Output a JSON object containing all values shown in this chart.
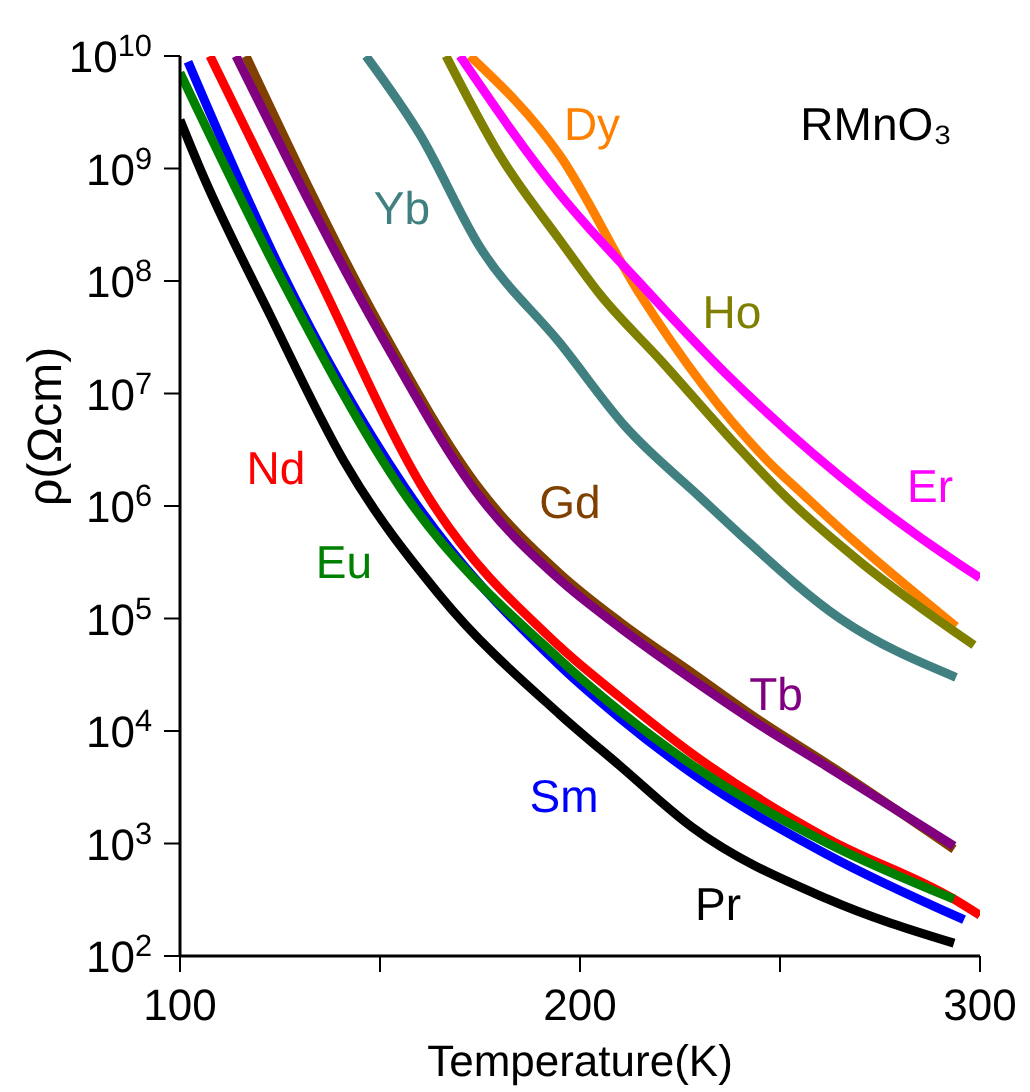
{
  "chart_data": {
    "type": "line",
    "xlabel": "Temperature(K)",
    "ylabel": "ρ(Ωcm)",
    "annotations": [
      "RMnO₃"
    ],
    "log": "y",
    "xlim": [
      100,
      300
    ],
    "xticks": [
      100,
      {
        "value": 150,
        "label": null
      },
      200,
      {
        "value": 250,
        "label": null
      },
      300
    ],
    "ylim": [
      100,
      10000000000.0
    ],
    "yticks": [
      {
        "value": 100,
        "label": "10$^{2}$"
      },
      {
        "value": 1000,
        "label": "10$^{3}$"
      },
      {
        "value": 10000,
        "label": "10$^{4}$"
      },
      {
        "value": 100000,
        "label": "10$^{5}$"
      },
      {
        "value": 1000000,
        "label": "10$^{6}$"
      },
      {
        "value": 10000000,
        "label": "10$^{7}$"
      },
      {
        "value": 100000000,
        "label": "10$^{8}$"
      },
      {
        "value": 1000000000,
        "label": "10$^{9}$"
      },
      {
        "value": 10000000000,
        "label": "10$^{10}$"
      }
    ],
    "marker": "none",
    "line_style": "solid",
    "series": [
      {
        "name": "Pr",
        "color": "#000000",
        "x": [
          100,
          105,
          122.5,
          141,
          165,
          195,
          210,
          228,
          262,
          293.5
        ],
        "values": [
          2700000000.0,
          1000000000.0,
          50000000.0,
          2500000.0,
          160000.0,
          14000.0,
          4900,
          1400,
          320,
          130
        ]
      },
      {
        "name": "Nd",
        "color": "#ff0000",
        "x": [
          107.5,
          133.5,
          161.5,
          195,
          210,
          228,
          262,
          293.5,
          300
        ],
        "values": [
          10000000000.0,
          130000000.0,
          1300000.0,
          56000.0,
          20000.0,
          6300,
          1100,
          320,
          230
        ]
      },
      {
        "name": "Sm",
        "color": "#0000ff",
        "x": [
          102,
          125,
          156,
          195,
          210,
          228,
          262,
          296
        ],
        "values": [
          8900000000.0,
          130000000.0,
          1500000.0,
          38000.0,
          13000.0,
          4200,
          790,
          210
        ]
      },
      {
        "name": "Eu",
        "color": "#008000",
        "x": [
          100,
          125,
          156,
          195,
          210,
          228,
          262,
          293.5
        ],
        "values": [
          7100000000.0,
          110000000.0,
          1300000.0,
          43000.0,
          15000.0,
          5000,
          1000,
          320
        ]
      },
      {
        "name": "Gd",
        "color": "#804000",
        "x": [
          116.5,
          150,
          175,
          195,
          210,
          228.5,
          245.5,
          261.5,
          293.5
        ],
        "values": [
          10000000000.0,
          40000000.0,
          1400000.0,
          250000.0,
          93000.0,
          32000.0,
          12000.0,
          5200,
          890
        ]
      },
      {
        "name": "Tb",
        "color": "#800080",
        "x": [
          114,
          150,
          175,
          195,
          210,
          228.5,
          245.5,
          261.5,
          293.5
        ],
        "values": [
          10000000000.0,
          34000000.0,
          1200000.0,
          220000.0,
          83000.0,
          28000.0,
          11000.0,
          4900,
          950
        ]
      },
      {
        "name": "Dy",
        "color": "#ff8000",
        "x": [
          172.5,
          195,
          215,
          246.5,
          256.5,
          265,
          294
        ],
        "values": [
          10000000000.0,
          1300000000.0,
          76000000.0,
          2600000.0,
          1200000.0,
          630000.0,
          85000.0
        ]
      },
      {
        "name": "Ho",
        "color": "#808000",
        "x": [
          166.5,
          180,
          195,
          205,
          220,
          240,
          251.5,
          270,
          298.5
        ],
        "values": [
          10000000000.0,
          1300000000.0,
          230000000.0,
          76000000.0,
          20000000.0,
          3200000.0,
          1200000.0,
          320000.0,
          58000.0
        ]
      },
      {
        "name": "Er",
        "color": "#ff00ff",
        "x": [
          170,
          195,
          205,
          211.5,
          236.5,
          271.5,
          295,
          300
        ],
        "values": [
          10000000000.0,
          590000000.0,
          230000000.0,
          130000000.0,
          15000000.0,
          1200000.0,
          300000.0,
          230000.0
        ]
      },
      {
        "name": "Yb",
        "color": "#408080",
        "x": [
          146.5,
          160,
          175,
          195,
          211.5,
          230,
          240,
          265,
          294
        ],
        "values": [
          10000000000.0,
          2000000000.0,
          200000000.0,
          28000000.0,
          5000000.0,
          1200000.0,
          560000.0,
          100000.0,
          30000.0
        ]
      }
    ]
  }
}
